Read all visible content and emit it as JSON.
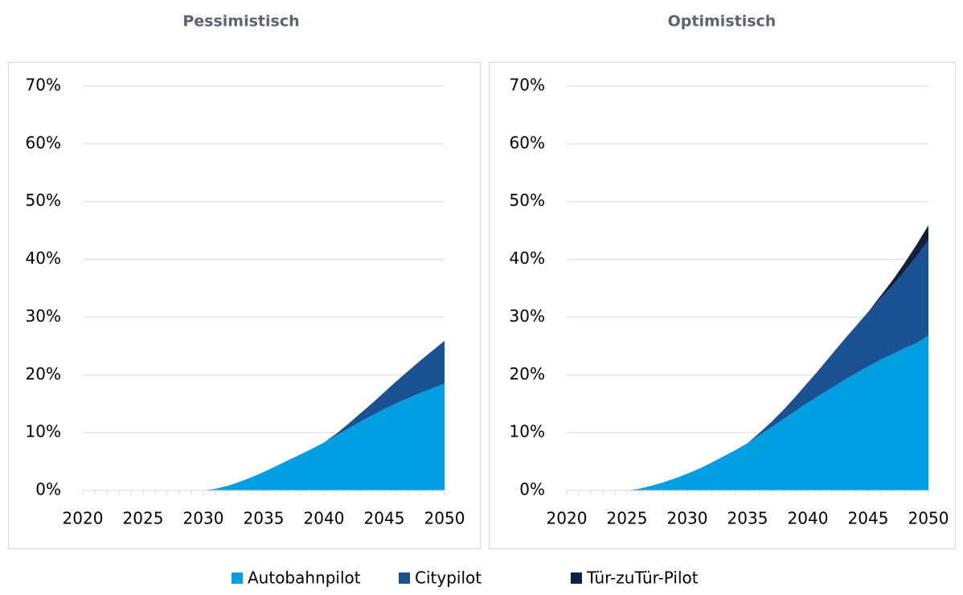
{
  "chart_data": [
    {
      "type": "area",
      "title": "Pessimistisch",
      "x": [
        2020,
        2021,
        2022,
        2023,
        2024,
        2025,
        2026,
        2027,
        2028,
        2029,
        2030,
        2031,
        2032,
        2033,
        2034,
        2035,
        2036,
        2037,
        2038,
        2039,
        2040,
        2041,
        2042,
        2043,
        2044,
        2045,
        2046,
        2047,
        2048,
        2049,
        2050
      ],
      "series": [
        {
          "name": "Autobahnpilot",
          "color": "#009fe3",
          "values": [
            0,
            0,
            0,
            0,
            0,
            0,
            0,
            0,
            0,
            0,
            0,
            0.3,
            0.8,
            1.5,
            2.3,
            3.2,
            4.2,
            5.2,
            6.2,
            7.2,
            8.3,
            9.5,
            10.7,
            11.9,
            13.0,
            14.1,
            15.1,
            16.0,
            16.9,
            17.7,
            18.5
          ]
        },
        {
          "name": "Citypilot",
          "color": "#1a5192",
          "values": [
            0,
            0,
            0,
            0,
            0,
            0,
            0,
            0,
            0,
            0,
            0,
            0,
            0,
            0,
            0,
            0,
            0,
            0,
            0,
            0,
            0,
            0.3,
            0.8,
            1.4,
            2.1,
            2.9,
            3.8,
            4.7,
            5.6,
            6.5,
            7.4
          ]
        },
        {
          "name": "Tür-zuTür-Pilot",
          "color": "#0d2240",
          "values": [
            0,
            0,
            0,
            0,
            0,
            0,
            0,
            0,
            0,
            0,
            0,
            0,
            0,
            0,
            0,
            0,
            0,
            0,
            0,
            0,
            0,
            0,
            0,
            0,
            0,
            0,
            0,
            0,
            0,
            0,
            0
          ]
        }
      ],
      "xlim": [
        2020,
        2050
      ],
      "xticks": [
        2020,
        2025,
        2030,
        2035,
        2040,
        2045,
        2050
      ],
      "ylim": [
        0,
        70
      ],
      "yticks": [
        {
          "value": 0,
          "label": "0%"
        },
        {
          "value": 10,
          "label": "10%"
        },
        {
          "value": 20,
          "label": "20%"
        },
        {
          "value": 30,
          "label": "30%"
        },
        {
          "value": 40,
          "label": "40%"
        },
        {
          "value": 50,
          "label": "50%"
        },
        {
          "value": 60,
          "label": "60%"
        },
        {
          "value": 70,
          "label": "70%"
        }
      ],
      "grid": true,
      "stacked": true
    },
    {
      "type": "area",
      "title": "Optimistisch",
      "x": [
        2020,
        2021,
        2022,
        2023,
        2024,
        2025,
        2026,
        2027,
        2028,
        2029,
        2030,
        2031,
        2032,
        2033,
        2034,
        2035,
        2036,
        2037,
        2038,
        2039,
        2040,
        2041,
        2042,
        2043,
        2044,
        2045,
        2046,
        2047,
        2048,
        2049,
        2050
      ],
      "series": [
        {
          "name": "Autobahnpilot",
          "color": "#009fe3",
          "values": [
            0,
            0,
            0,
            0,
            0,
            0,
            0.3,
            0.8,
            1.4,
            2.1,
            2.9,
            3.8,
            4.8,
            5.9,
            7.0,
            8.2,
            9.6,
            11.0,
            12.4,
            13.8,
            15.2,
            16.5,
            17.8,
            19.1,
            20.3,
            21.5,
            22.6,
            23.6,
            24.6,
            25.5,
            26.8
          ]
        },
        {
          "name": "Citypilot",
          "color": "#1a5192",
          "values": [
            0,
            0,
            0,
            0,
            0,
            0,
            0,
            0,
            0,
            0,
            0,
            0,
            0,
            0,
            0,
            0,
            0.4,
            0.9,
            1.6,
            2.5,
            3.5,
            4.6,
            5.8,
            7.0,
            8.2,
            9.4,
            10.6,
            11.8,
            13.3,
            15.0,
            16.5
          ]
        },
        {
          "name": "Tür-zuTür-Pilot",
          "color": "#0d2240",
          "values": [
            0,
            0,
            0,
            0,
            0,
            0,
            0,
            0,
            0,
            0,
            0,
            0,
            0,
            0,
            0,
            0,
            0,
            0,
            0,
            0,
            0,
            0,
            0,
            0,
            0,
            0,
            0.4,
            0.9,
            1.4,
            2.0,
            2.6
          ]
        }
      ],
      "xlim": [
        2020,
        2050
      ],
      "xticks": [
        2020,
        2025,
        2030,
        2035,
        2040,
        2045,
        2050
      ],
      "ylim": [
        0,
        70
      ],
      "yticks": [
        {
          "value": 0,
          "label": "0%"
        },
        {
          "value": 10,
          "label": "10%"
        },
        {
          "value": 20,
          "label": "20%"
        },
        {
          "value": 30,
          "label": "30%"
        },
        {
          "value": 40,
          "label": "40%"
        },
        {
          "value": 50,
          "label": "50%"
        },
        {
          "value": 60,
          "label": "60%"
        },
        {
          "value": 70,
          "label": "70%"
        }
      ],
      "grid": true,
      "stacked": true
    }
  ]
}
